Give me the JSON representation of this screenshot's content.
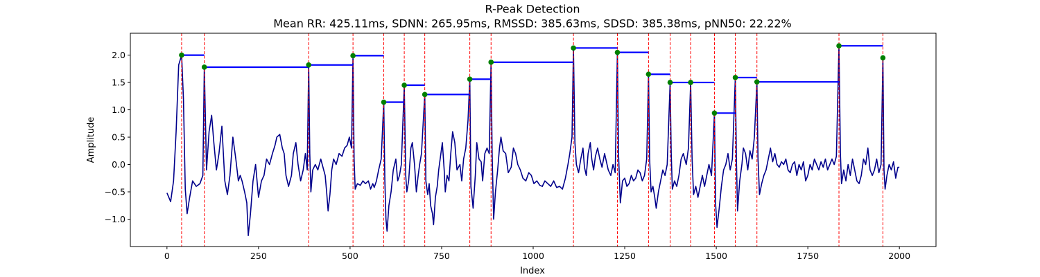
{
  "chart_data": {
    "type": "line",
    "title": "R-Peak Detection",
    "subtitle": "Mean RR: 425.11ms, SDNN: 265.95ms, RMSSD: 385.63ms, SDSD: 385.38ms, pNN50: 22.22%",
    "xlabel": "Index",
    "ylabel": "Amplitude",
    "xlim": [
      -100,
      2100
    ],
    "ylim": [
      -1.5,
      2.4
    ],
    "xticks": [
      0,
      250,
      500,
      750,
      1000,
      1250,
      1500,
      1750,
      2000
    ],
    "xtick_labels": [
      "0",
      "250",
      "500",
      "750",
      "1000",
      "1250",
      "1500",
      "1750",
      "2000"
    ],
    "yticks": [
      -1.0,
      -0.5,
      0.0,
      0.5,
      1.0,
      1.5,
      2.0
    ],
    "ytick_labels": [
      "−1.0",
      "−0.5",
      "0.0",
      "0.5",
      "1.0",
      "1.5",
      "2.0"
    ],
    "grid": false,
    "colors": {
      "signal": "#00008b",
      "peak_lines": "#ff0000",
      "rr_intervals": "#0000ff",
      "peak_markers": "#008000"
    },
    "peaks": [
      {
        "x": 40,
        "y": 2.0
      },
      {
        "x": 102,
        "y": 1.78
      },
      {
        "x": 387,
        "y": 1.82
      },
      {
        "x": 508,
        "y": 1.99
      },
      {
        "x": 592,
        "y": 1.14
      },
      {
        "x": 648,
        "y": 1.45
      },
      {
        "x": 704,
        "y": 1.28
      },
      {
        "x": 827,
        "y": 1.56
      },
      {
        "x": 885,
        "y": 1.87
      },
      {
        "x": 1110,
        "y": 2.13
      },
      {
        "x": 1230,
        "y": 2.05
      },
      {
        "x": 1315,
        "y": 1.65
      },
      {
        "x": 1374,
        "y": 1.5
      },
      {
        "x": 1430,
        "y": 1.5
      },
      {
        "x": 1495,
        "y": 0.94
      },
      {
        "x": 1552,
        "y": 1.59
      },
      {
        "x": 1611,
        "y": 1.51
      },
      {
        "x": 1835,
        "y": 2.17
      },
      {
        "x": 1955,
        "y": 1.95
      }
    ],
    "signal_anchors": [
      [
        0,
        -0.52
      ],
      [
        10,
        -0.68
      ],
      [
        18,
        -0.3
      ],
      [
        25,
        0.6
      ],
      [
        32,
        1.82
      ],
      [
        40,
        2.0
      ],
      [
        45,
        1.2
      ],
      [
        50,
        -0.45
      ],
      [
        55,
        -0.9
      ],
      [
        62,
        -0.6
      ],
      [
        70,
        -0.3
      ],
      [
        80,
        -0.4
      ],
      [
        90,
        -0.35
      ],
      [
        98,
        -0.2
      ],
      [
        102,
        1.78
      ],
      [
        108,
        -0.1
      ],
      [
        115,
        0.6
      ],
      [
        122,
        0.9
      ],
      [
        128,
        0.4
      ],
      [
        135,
        -0.1
      ],
      [
        142,
        0.2
      ],
      [
        150,
        0.7
      ],
      [
        158,
        -0.3
      ],
      [
        165,
        -0.55
      ],
      [
        172,
        -0.2
      ],
      [
        180,
        0.5
      ],
      [
        188,
        0.1
      ],
      [
        195,
        -0.3
      ],
      [
        200,
        -0.2
      ],
      [
        205,
        -0.3
      ],
      [
        212,
        -0.5
      ],
      [
        218,
        -0.7
      ],
      [
        222,
        -1.3
      ],
      [
        228,
        -0.9
      ],
      [
        235,
        -0.3
      ],
      [
        242,
        0.0
      ],
      [
        250,
        -0.6
      ],
      [
        258,
        -0.3
      ],
      [
        265,
        -0.2
      ],
      [
        272,
        0.1
      ],
      [
        280,
        0.0
      ],
      [
        288,
        0.2
      ],
      [
        295,
        0.35
      ],
      [
        300,
        0.5
      ],
      [
        308,
        0.55
      ],
      [
        315,
        0.3
      ],
      [
        320,
        0.2
      ],
      [
        325,
        -0.2
      ],
      [
        332,
        -0.4
      ],
      [
        340,
        -0.2
      ],
      [
        345,
        0.2
      ],
      [
        352,
        0.4
      ],
      [
        358,
        0.0
      ],
      [
        365,
        -0.3
      ],
      [
        372,
        -0.1
      ],
      [
        378,
        0.2
      ],
      [
        383,
        -0.1
      ],
      [
        387,
        1.82
      ],
      [
        390,
        0.2
      ],
      [
        393,
        -0.5
      ],
      [
        398,
        -0.1
      ],
      [
        405,
        0.0
      ],
      [
        412,
        -0.1
      ],
      [
        420,
        0.1
      ],
      [
        426,
        -0.05
      ],
      [
        432,
        -0.2
      ],
      [
        436,
        -0.5
      ],
      [
        440,
        -0.85
      ],
      [
        445,
        -0.55
      ],
      [
        450,
        -0.1
      ],
      [
        455,
        0.1
      ],
      [
        462,
        0.0
      ],
      [
        470,
        0.2
      ],
      [
        478,
        0.15
      ],
      [
        485,
        0.3
      ],
      [
        492,
        0.35
      ],
      [
        498,
        0.5
      ],
      [
        504,
        0.3
      ],
      [
        508,
        1.99
      ],
      [
        511,
        0.1
      ],
      [
        514,
        -0.45
      ],
      [
        520,
        -0.35
      ],
      [
        528,
        -0.38
      ],
      [
        535,
        -0.3
      ],
      [
        542,
        -0.35
      ],
      [
        550,
        -0.3
      ],
      [
        556,
        -0.45
      ],
      [
        562,
        -0.35
      ],
      [
        566,
        -0.42
      ],
      [
        572,
        -0.3
      ],
      [
        578,
        -0.1
      ],
      [
        585,
        0.1
      ],
      [
        592,
        1.14
      ],
      [
        595,
        -0.3
      ],
      [
        598,
        -1.0
      ],
      [
        601,
        -1.22
      ],
      [
        606,
        -0.75
      ],
      [
        612,
        -0.5
      ],
      [
        618,
        -0.1
      ],
      [
        625,
        0.1
      ],
      [
        630,
        -0.3
      ],
      [
        635,
        -0.2
      ],
      [
        640,
        0.0
      ],
      [
        648,
        1.45
      ],
      [
        652,
        -0.2
      ],
      [
        655,
        -0.5
      ],
      [
        660,
        -0.3
      ],
      [
        666,
        0.3
      ],
      [
        670,
        0.4
      ],
      [
        676,
        0.0
      ],
      [
        681,
        -0.5
      ],
      [
        686,
        -0.2
      ],
      [
        690,
        0.0
      ],
      [
        695,
        0.2
      ],
      [
        704,
        1.28
      ],
      [
        707,
        -0.3
      ],
      [
        712,
        -0.55
      ],
      [
        716,
        -0.35
      ],
      [
        720,
        -0.75
      ],
      [
        725,
        -0.9
      ],
      [
        728,
        -1.1
      ],
      [
        733,
        -0.6
      ],
      [
        738,
        -0.4
      ],
      [
        742,
        -0.1
      ],
      [
        748,
        0.2
      ],
      [
        752,
        0.4
      ],
      [
        757,
        -0.1
      ],
      [
        760,
        -0.5
      ],
      [
        765,
        -0.2
      ],
      [
        770,
        -0.3
      ],
      [
        775,
        0.2
      ],
      [
        780,
        0.6
      ],
      [
        786,
        0.4
      ],
      [
        792,
        -0.1
      ],
      [
        800,
        0.0
      ],
      [
        805,
        -0.3
      ],
      [
        810,
        0.1
      ],
      [
        816,
        0.3
      ],
      [
        822,
        0.8
      ],
      [
        827,
        1.56
      ],
      [
        830,
        -0.4
      ],
      [
        836,
        -0.8
      ],
      [
        842,
        -0.2
      ],
      [
        846,
        0.4
      ],
      [
        852,
        0.1
      ],
      [
        858,
        0.05
      ],
      [
        862,
        -0.3
      ],
      [
        868,
        0.2
      ],
      [
        874,
        0.3
      ],
      [
        880,
        0.2
      ],
      [
        885,
        1.87
      ],
      [
        888,
        0.2
      ],
      [
        892,
        -1.0
      ],
      [
        897,
        -0.5
      ],
      [
        903,
        -0.1
      ],
      [
        908,
        0.3
      ],
      [
        912,
        0.5
      ],
      [
        918,
        0.25
      ],
      [
        925,
        0.2
      ],
      [
        932,
        -0.15
      ],
      [
        940,
        -0.05
      ],
      [
        946,
        0.3
      ],
      [
        952,
        0.2
      ],
      [
        958,
        0.0
      ],
      [
        965,
        -0.1
      ],
      [
        972,
        -0.25
      ],
      [
        980,
        -0.3
      ],
      [
        988,
        -0.15
      ],
      [
        995,
        -0.2
      ],
      [
        1002,
        -0.35
      ],
      [
        1010,
        -0.3
      ],
      [
        1018,
        -0.38
      ],
      [
        1025,
        -0.4
      ],
      [
        1032,
        -0.3
      ],
      [
        1040,
        -0.35
      ],
      [
        1048,
        -0.4
      ],
      [
        1056,
        -0.3
      ],
      [
        1064,
        -0.42
      ],
      [
        1072,
        -0.4
      ],
      [
        1080,
        -0.45
      ],
      [
        1088,
        -0.25
      ],
      [
        1095,
        0.0
      ],
      [
        1100,
        0.2
      ],
      [
        1106,
        0.5
      ],
      [
        1110,
        2.13
      ],
      [
        1114,
        0.4
      ],
      [
        1118,
        0.0
      ],
      [
        1124,
        -0.15
      ],
      [
        1130,
        0.1
      ],
      [
        1136,
        0.3
      ],
      [
        1140,
        -0.05
      ],
      [
        1145,
        -0.2
      ],
      [
        1150,
        0.2
      ],
      [
        1156,
        0.4
      ],
      [
        1160,
        0.1
      ],
      [
        1165,
        -0.1
      ],
      [
        1170,
        0.15
      ],
      [
        1176,
        0.3
      ],
      [
        1182,
        0.1
      ],
      [
        1188,
        -0.05
      ],
      [
        1195,
        0.2
      ],
      [
        1200,
        0.05
      ],
      [
        1205,
        -0.1
      ],
      [
        1212,
        -0.2
      ],
      [
        1218,
        0.0
      ],
      [
        1224,
        -0.15
      ],
      [
        1230,
        2.05
      ],
      [
        1233,
        0.2
      ],
      [
        1238,
        -0.7
      ],
      [
        1244,
        -0.3
      ],
      [
        1250,
        -0.25
      ],
      [
        1256,
        -0.4
      ],
      [
        1262,
        -0.35
      ],
      [
        1268,
        -0.2
      ],
      [
        1274,
        -0.3
      ],
      [
        1280,
        -0.25
      ],
      [
        1286,
        -0.1
      ],
      [
        1292,
        -0.15
      ],
      [
        1298,
        -0.3
      ],
      [
        1304,
        -0.2
      ],
      [
        1310,
        0.1
      ],
      [
        1315,
        1.65
      ],
      [
        1318,
        0.1
      ],
      [
        1322,
        -0.5
      ],
      [
        1327,
        -0.4
      ],
      [
        1332,
        -0.6
      ],
      [
        1336,
        -0.8
      ],
      [
        1342,
        -0.5
      ],
      [
        1348,
        -0.3
      ],
      [
        1354,
        -0.1
      ],
      [
        1360,
        -0.2
      ],
      [
        1366,
        0.0
      ],
      [
        1374,
        1.5
      ],
      [
        1377,
        0.2
      ],
      [
        1380,
        -0.45
      ],
      [
        1386,
        -0.3
      ],
      [
        1392,
        -0.4
      ],
      [
        1398,
        -0.2
      ],
      [
        1404,
        0.1
      ],
      [
        1410,
        0.2
      ],
      [
        1418,
        0.0
      ],
      [
        1424,
        0.3
      ],
      [
        1430,
        1.5
      ],
      [
        1434,
        0.1
      ],
      [
        1438,
        -0.55
      ],
      [
        1444,
        -0.4
      ],
      [
        1450,
        -0.6
      ],
      [
        1456,
        -0.4
      ],
      [
        1462,
        -0.2
      ],
      [
        1468,
        -0.4
      ],
      [
        1474,
        -0.2
      ],
      [
        1480,
        0.0
      ],
      [
        1487,
        -0.2
      ],
      [
        1495,
        0.94
      ],
      [
        1498,
        -0.7
      ],
      [
        1502,
        -1.15
      ],
      [
        1508,
        -0.8
      ],
      [
        1514,
        -0.4
      ],
      [
        1520,
        -0.1
      ],
      [
        1526,
        0.0
      ],
      [
        1532,
        0.2
      ],
      [
        1538,
        -0.1
      ],
      [
        1544,
        0.1
      ],
      [
        1552,
        1.59
      ],
      [
        1555,
        0.1
      ],
      [
        1558,
        -0.85
      ],
      [
        1564,
        -0.3
      ],
      [
        1570,
        0.0
      ],
      [
        1574,
        0.3
      ],
      [
        1580,
        0.2
      ],
      [
        1586,
        -0.1
      ],
      [
        1592,
        0.25
      ],
      [
        1598,
        0.1
      ],
      [
        1604,
        0.5
      ],
      [
        1611,
        1.51
      ],
      [
        1614,
        0.1
      ],
      [
        1618,
        -0.55
      ],
      [
        1624,
        -0.35
      ],
      [
        1630,
        -0.2
      ],
      [
        1636,
        -0.1
      ],
      [
        1642,
        0.1
      ],
      [
        1648,
        0.3
      ],
      [
        1654,
        0.05
      ],
      [
        1660,
        0.2
      ],
      [
        1666,
        0.0
      ],
      [
        1672,
        -0.05
      ],
      [
        1678,
        0.05
      ],
      [
        1684,
        0.0
      ],
      [
        1690,
        0.1
      ],
      [
        1696,
        -0.1
      ],
      [
        1702,
        -0.15
      ],
      [
        1708,
        0.0
      ],
      [
        1714,
        0.05
      ],
      [
        1720,
        -0.2
      ],
      [
        1726,
        0.0
      ],
      [
        1732,
        -0.1
      ],
      [
        1738,
        0.05
      ],
      [
        1744,
        -0.3
      ],
      [
        1750,
        -0.2
      ],
      [
        1756,
        0.0
      ],
      [
        1762,
        -0.1
      ],
      [
        1768,
        0.1
      ],
      [
        1774,
        0.0
      ],
      [
        1780,
        -0.1
      ],
      [
        1786,
        0.05
      ],
      [
        1792,
        -0.05
      ],
      [
        1798,
        0.1
      ],
      [
        1804,
        -0.1
      ],
      [
        1810,
        0.0
      ],
      [
        1816,
        0.1
      ],
      [
        1822,
        0.0
      ],
      [
        1828,
        0.15
      ],
      [
        1835,
        2.17
      ],
      [
        1839,
        0.2
      ],
      [
        1842,
        -0.35
      ],
      [
        1848,
        -0.1
      ],
      [
        1854,
        -0.3
      ],
      [
        1860,
        0.0
      ],
      [
        1866,
        -0.2
      ],
      [
        1872,
        0.1
      ],
      [
        1878,
        -0.1
      ],
      [
        1884,
        -0.3
      ],
      [
        1890,
        -0.35
      ],
      [
        1896,
        -0.2
      ],
      [
        1902,
        0.1
      ],
      [
        1908,
        0.0
      ],
      [
        1914,
        0.3
      ],
      [
        1920,
        -0.1
      ],
      [
        1926,
        -0.2
      ],
      [
        1932,
        -0.1
      ],
      [
        1938,
        0.1
      ],
      [
        1944,
        -0.15
      ],
      [
        1950,
        0.0
      ],
      [
        1955,
        1.95
      ],
      [
        1958,
        -0.1
      ],
      [
        1961,
        -0.45
      ],
      [
        1966,
        -0.2
      ],
      [
        1972,
        0.0
      ],
      [
        1978,
        -0.1
      ],
      [
        1984,
        0.05
      ],
      [
        1990,
        -0.25
      ],
      [
        1996,
        -0.05
      ],
      [
        2000,
        -0.05
      ]
    ]
  }
}
